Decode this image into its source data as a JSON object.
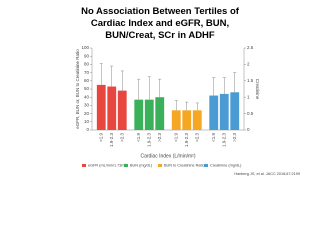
{
  "chart_data": {
    "type": "bar",
    "title": "No Association Between Tertiles of Cardiac Index and eGFR, BUN, BUN/Creat, SCr in ADHF",
    "categories": [
      "<1.9",
      "1.9-2.3",
      ">2.3",
      "<1.9",
      "1.9-2.3",
      ">2.3",
      "<1.9",
      "1.9-2.3",
      ">2.3",
      "<1.9",
      "1.9-2.3",
      ">2.3"
    ],
    "series": [
      {
        "name": "eGFR (mL/min/1.73m²)",
        "color": "#e8473f",
        "values": [
          55,
          53,
          48,
          null,
          null,
          null,
          null,
          null,
          null,
          null,
          null,
          null
        ],
        "errors": [
          26,
          25,
          24,
          null,
          null,
          null,
          null,
          null,
          null,
          null,
          null,
          null
        ]
      },
      {
        "name": "BUN (mg/dL)",
        "color": "#3bb05a",
        "values": [
          null,
          null,
          null,
          37,
          37,
          40,
          null,
          null,
          null,
          null,
          null,
          null
        ],
        "errors": [
          null,
          null,
          null,
          25,
          28,
          22,
          null,
          null,
          null,
          null,
          null,
          null
        ]
      },
      {
        "name": "BUN to Creatinine Ratio",
        "color": "#f5a623",
        "values": [
          null,
          null,
          null,
          null,
          null,
          null,
          24,
          24,
          24,
          null,
          null,
          null
        ],
        "errors": [
          null,
          null,
          null,
          null,
          null,
          null,
          12,
          10,
          9,
          null,
          null,
          null
        ]
      },
      {
        "name": "Creatinine (mg/dL)",
        "color": "#4a9ad4",
        "axis": "y2",
        "values": [
          null,
          null,
          null,
          null,
          null,
          null,
          null,
          null,
          null,
          1.05,
          1.1,
          1.15
        ],
        "errors": [
          null,
          null,
          null,
          null,
          null,
          null,
          null,
          null,
          null,
          0.55,
          0.5,
          0.6
        ]
      }
    ],
    "ylabel": "eGFR, BUN or, BUN to Creatinine Ratio",
    "y2label": "Creatinine",
    "xlabel": "Cardiac Index (L/min/m²)",
    "ylim": [
      0,
      100
    ],
    "yticks": [
      0,
      10,
      20,
      30,
      40,
      50,
      60,
      70,
      80,
      90,
      100
    ],
    "y2lim": [
      0,
      2.5
    ],
    "y2ticks": [
      0,
      0.5,
      1,
      1.5,
      2,
      2.5
    ],
    "source": "Hanberg JS, et al. JACC 2016;67:2199"
  }
}
